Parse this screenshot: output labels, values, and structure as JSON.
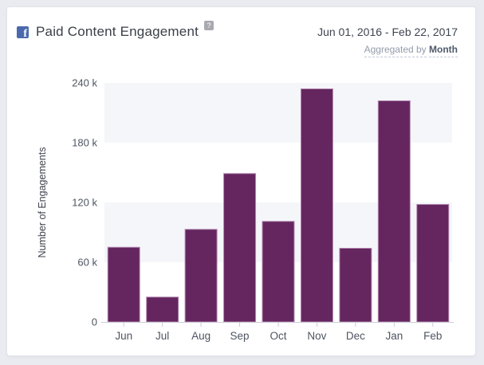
{
  "header": {
    "title": "Paid Content Engagement",
    "help_icon": "?",
    "facebook_icon_glyph": "f",
    "date_range": "Jun 01, 2016 - Feb 22, 2017",
    "aggregated_prefix": "Aggregated by",
    "aggregated_value": "Month"
  },
  "colors": {
    "bar_fill": "#652660",
    "bar_stroke": "#b48ab0",
    "band": "#f5f6fa",
    "axis_line": "#ccccd8",
    "tick_mark": "#c9cbd6",
    "axis_label": "#4e5662",
    "axis_title": "#3e434d",
    "facebook_blue": "#4a69ad",
    "page_bg": "#e9ebf1",
    "card_bg": "#ffffff"
  },
  "chart_data": {
    "type": "bar",
    "title": "Paid Content Engagement",
    "categories": [
      "Jun",
      "Jul",
      "Aug",
      "Sep",
      "Oct",
      "Nov",
      "Dec",
      "Jan",
      "Feb"
    ],
    "values": [
      75000,
      25000,
      93000,
      149000,
      101000,
      234000,
      74000,
      222000,
      118000
    ],
    "series": [
      {
        "name": "Number of Engagements",
        "values": [
          75000,
          25000,
          93000,
          149000,
          101000,
          234000,
          74000,
          222000,
          118000
        ]
      }
    ],
    "xlabel": "",
    "ylabel": "Number of Engagements",
    "ylim": [
      0,
      240000
    ],
    "ytick_values": [
      0,
      60000,
      120000,
      180000,
      240000
    ],
    "ytick_labels": [
      "0",
      "60 k",
      "120 k",
      "180 k",
      "240 k"
    ],
    "grid": "alternating-horizontal-bands",
    "legend_position": "none"
  }
}
